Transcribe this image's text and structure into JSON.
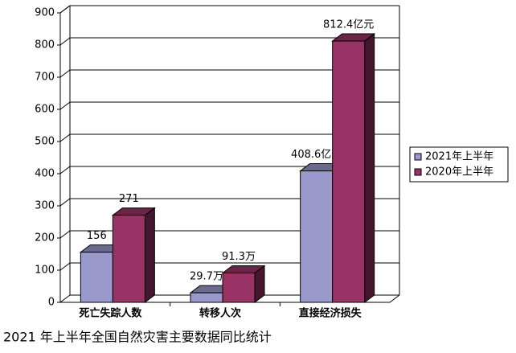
{
  "chart_data": {
    "type": "bar3d",
    "title": "2021 年上半年全国自然灾害主要数据同比统计",
    "categories": [
      "死亡失踪人数",
      "转移人次",
      "直接经济损失"
    ],
    "series": [
      {
        "name": "2021年上半年",
        "color": "#9999cc",
        "values": [
          156,
          29.7,
          408.6
        ],
        "value_labels": [
          "156",
          "29.7万",
          "408.6亿元"
        ]
      },
      {
        "name": "2020年上半年",
        "color": "#993366",
        "values": [
          271,
          91.3,
          812.4
        ],
        "value_labels": [
          "271",
          "91.3万",
          "812.4亿元"
        ]
      }
    ],
    "ylim": [
      0,
      900
    ],
    "yticks": [
      0,
      100,
      200,
      300,
      400,
      500,
      600,
      700,
      800,
      900
    ],
    "grid": true,
    "legend": "right"
  }
}
